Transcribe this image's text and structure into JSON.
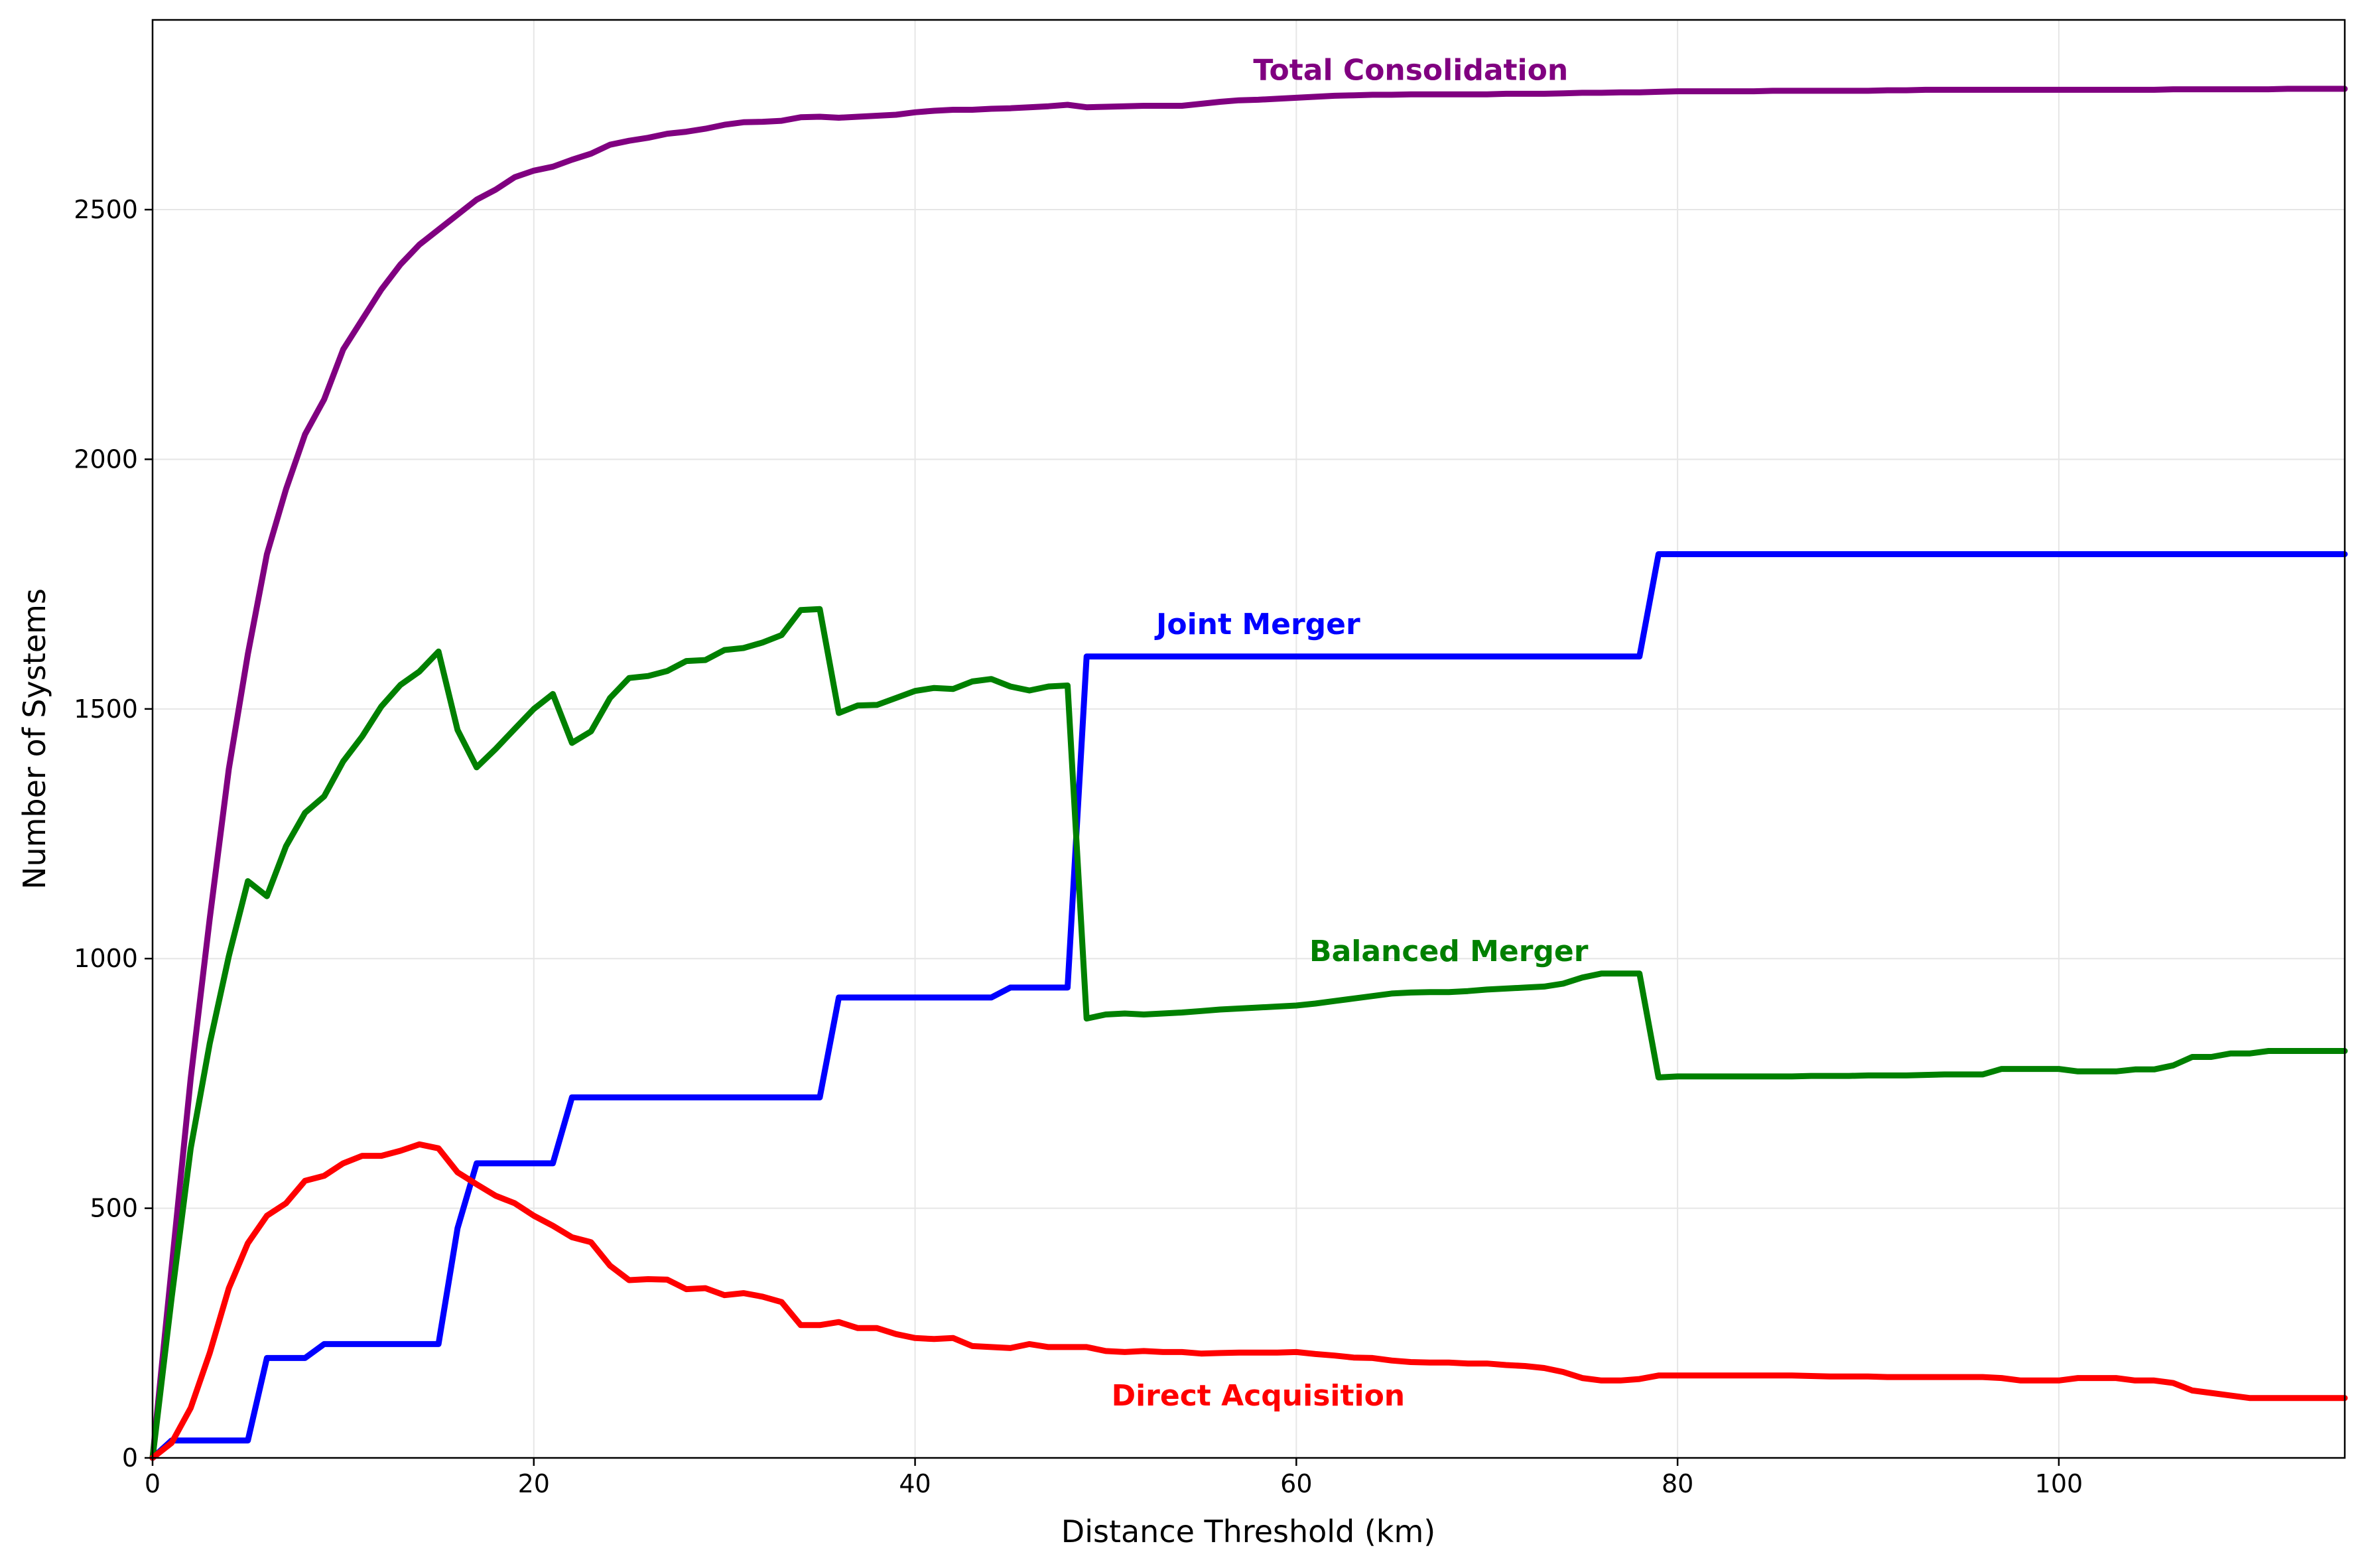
{
  "chart_data": {
    "type": "line",
    "title": "",
    "xlabel": "Distance Threshold (km)",
    "ylabel": "Number of Systems",
    "xlim": [
      0,
      115
    ],
    "ylim": [
      0,
      2880
    ],
    "xticks": [
      0,
      20,
      40,
      60,
      80,
      100
    ],
    "yticks": [
      0,
      500,
      1000,
      1500,
      2000,
      2500
    ],
    "grid": true,
    "legend": "none",
    "x": [
      0,
      1,
      2,
      3,
      4,
      5,
      6,
      7,
      8,
      9,
      10,
      11,
      12,
      13,
      14,
      15,
      16,
      17,
      18,
      19,
      20,
      21,
      22,
      23,
      24,
      25,
      26,
      27,
      28,
      29,
      30,
      31,
      32,
      33,
      34,
      35,
      36,
      37,
      38,
      39,
      40,
      41,
      42,
      43,
      44,
      45,
      46,
      47,
      48,
      49,
      50,
      51,
      52,
      53,
      54,
      55,
      56,
      57,
      58,
      59,
      60,
      61,
      62,
      63,
      64,
      65,
      66,
      67,
      68,
      69,
      70,
      71,
      72,
      73,
      74,
      75,
      76,
      77,
      78,
      79,
      80,
      81,
      82,
      83,
      84,
      85,
      86,
      87,
      88,
      89,
      90,
      91,
      92,
      93,
      94,
      95,
      96,
      97,
      98,
      99,
      100,
      101,
      102,
      103,
      104,
      105,
      106,
      107,
      108,
      109,
      110,
      111,
      112,
      113,
      114,
      115
    ],
    "series": [
      {
        "name": "Total Consolidation",
        "color": "#800080",
        "label_at": [
          66,
          2780
        ],
        "values": [
          0,
          380,
          760,
          1080,
          1380,
          1610,
          1810,
          1940,
          2050,
          2120,
          2220,
          2280,
          2340,
          2390,
          2430,
          2460,
          2490,
          2520,
          2540,
          2565,
          2578,
          2586,
          2600,
          2612,
          2630,
          2638,
          2644,
          2652,
          2656,
          2662,
          2670,
          2675,
          2676,
          2678,
          2685,
          2686,
          2684,
          2686,
          2688,
          2690,
          2695,
          2698,
          2700,
          2700,
          2702,
          2703,
          2705,
          2707,
          2710,
          2705,
          2706,
          2707,
          2708,
          2708,
          2708,
          2712,
          2716,
          2719,
          2720,
          2722,
          2724,
          2726,
          2728,
          2729,
          2730,
          2730,
          2731,
          2731,
          2731,
          2731,
          2731,
          2732,
          2732,
          2732,
          2733,
          2734,
          2734,
          2735,
          2735,
          2736,
          2737,
          2737,
          2737,
          2737,
          2737,
          2738,
          2738,
          2738,
          2738,
          2738,
          2738,
          2739,
          2739,
          2740,
          2740,
          2740,
          2740,
          2740,
          2740,
          2740,
          2740,
          2740,
          2740,
          2740,
          2740,
          2740,
          2741,
          2741,
          2741,
          2741,
          2741,
          2741,
          2742,
          2742,
          2742,
          2742
        ]
      },
      {
        "name": "Joint Merger",
        "color": "#0000ff",
        "label_at": [
          58,
          1670
        ],
        "values": [
          0,
          35,
          35,
          35,
          35,
          35,
          200,
          200,
          200,
          228,
          228,
          228,
          228,
          228,
          228,
          228,
          460,
          590,
          590,
          590,
          590,
          590,
          722,
          722,
          722,
          722,
          722,
          722,
          722,
          722,
          722,
          722,
          722,
          722,
          722,
          722,
          922,
          922,
          922,
          922,
          922,
          922,
          922,
          922,
          922,
          942,
          942,
          942,
          942,
          1605,
          1605,
          1605,
          1605,
          1605,
          1605,
          1605,
          1605,
          1605,
          1605,
          1605,
          1605,
          1605,
          1605,
          1605,
          1605,
          1605,
          1605,
          1605,
          1605,
          1605,
          1605,
          1605,
          1605,
          1605,
          1605,
          1605,
          1605,
          1605,
          1605,
          1810,
          1810,
          1810,
          1810,
          1810,
          1810,
          1810,
          1810,
          1810,
          1810,
          1810,
          1810,
          1810,
          1810,
          1810,
          1810,
          1810,
          1810,
          1810,
          1810,
          1810,
          1810,
          1810,
          1810,
          1810,
          1810,
          1810,
          1810,
          1810,
          1810,
          1810,
          1810,
          1810,
          1810,
          1810,
          1810,
          1810
        ]
      },
      {
        "name": "Balanced Merger",
        "color": "#008000",
        "label_at": [
          68,
          1015
        ],
        "values": [
          0,
          320,
          620,
          830,
          1005,
          1155,
          1125,
          1225,
          1292,
          1325,
          1395,
          1445,
          1505,
          1548,
          1575,
          1615,
          1458,
          1383,
          1420,
          1460,
          1500,
          1530,
          1432,
          1455,
          1522,
          1562,
          1566,
          1576,
          1596,
          1598,
          1618,
          1622,
          1633,
          1648,
          1698,
          1700,
          1492,
          1507,
          1508,
          1522,
          1536,
          1542,
          1540,
          1555,
          1560,
          1545,
          1537,
          1545,
          1547,
          880,
          888,
          890,
          888,
          890,
          892,
          895,
          898,
          900,
          902,
          904,
          906,
          910,
          915,
          920,
          925,
          930,
          932,
          933,
          933,
          935,
          938,
          940,
          942,
          944,
          950,
          962,
          970,
          970,
          970,
          762,
          764,
          764,
          764,
          764,
          764,
          764,
          764,
          765,
          765,
          765,
          766,
          766,
          766,
          767,
          768,
          768,
          768,
          779,
          779,
          779,
          779,
          774,
          774,
          774,
          778,
          778,
          786,
          803,
          803,
          810,
          810,
          815,
          815,
          815,
          815,
          815
        ]
      },
      {
        "name": "Direct Acquisition",
        "color": "#ff0000",
        "label_at": [
          58,
          125
        ],
        "values": [
          0,
          30,
          100,
          210,
          340,
          430,
          485,
          510,
          555,
          565,
          590,
          605,
          605,
          615,
          628,
          620,
          572,
          548,
          525,
          510,
          485,
          465,
          442,
          432,
          385,
          356,
          358,
          357,
          338,
          340,
          326,
          330,
          323,
          312,
          266,
          266,
          272,
          260,
          260,
          248,
          240,
          238,
          240,
          224,
          222,
          220,
          228,
          222,
          222,
          222,
          214,
          212,
          214,
          212,
          212,
          209,
          210,
          211,
          211,
          211,
          212,
          208,
          205,
          201,
          200,
          195,
          192,
          191,
          191,
          189,
          189,
          186,
          184,
          180,
          172,
          160,
          155,
          155,
          158,
          165,
          165,
          165,
          165,
          165,
          165,
          165,
          165,
          164,
          163,
          163,
          163,
          162,
          162,
          162,
          162,
          162,
          162,
          160,
          155,
          155,
          155,
          160,
          160,
          160,
          155,
          155,
          150,
          135,
          130,
          125,
          120,
          120,
          120,
          120,
          120,
          120
        ]
      }
    ]
  }
}
